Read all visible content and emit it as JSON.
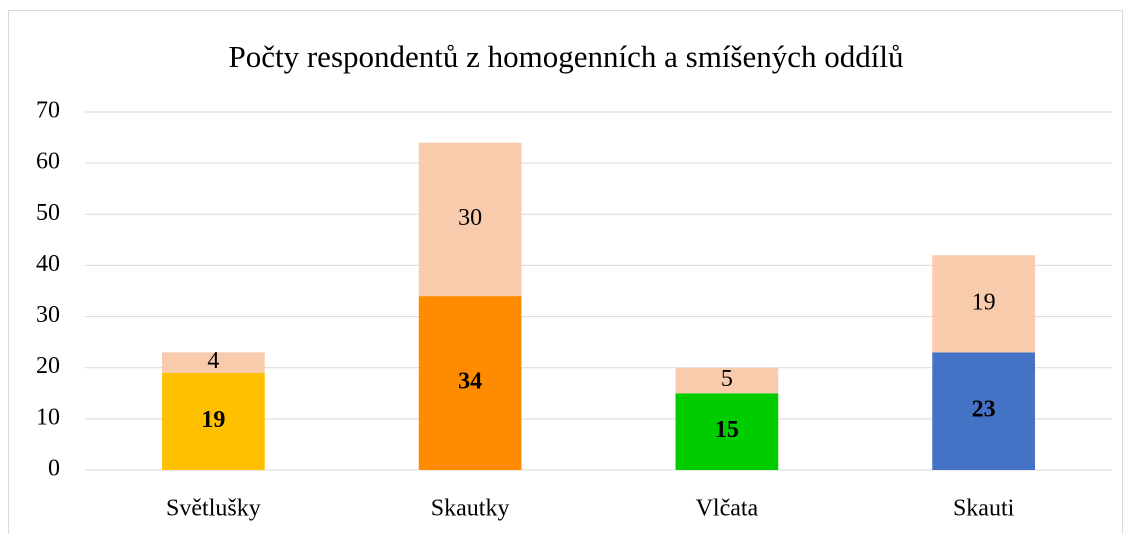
{
  "chart_data": {
    "type": "stacked_bar",
    "title": "Počty respondentů z homogenních a smíšených oddílů",
    "categories": [
      "Světlušky",
      "Skautky",
      "Vlčata",
      "Skauti"
    ],
    "series": [
      {
        "colors": [
          "#ffc000",
          "#ff8c00",
          "#00cc00",
          "#4472c4"
        ],
        "values": [
          19,
          34,
          15,
          23
        ],
        "bold": true
      },
      {
        "color": "#f8cbad",
        "values": [
          4,
          30,
          5,
          19
        ],
        "bold": false
      }
    ],
    "ylim": [
      0,
      70
    ],
    "yticks": [
      0,
      10,
      20,
      30,
      40,
      50,
      60,
      70
    ],
    "grid": true
  }
}
